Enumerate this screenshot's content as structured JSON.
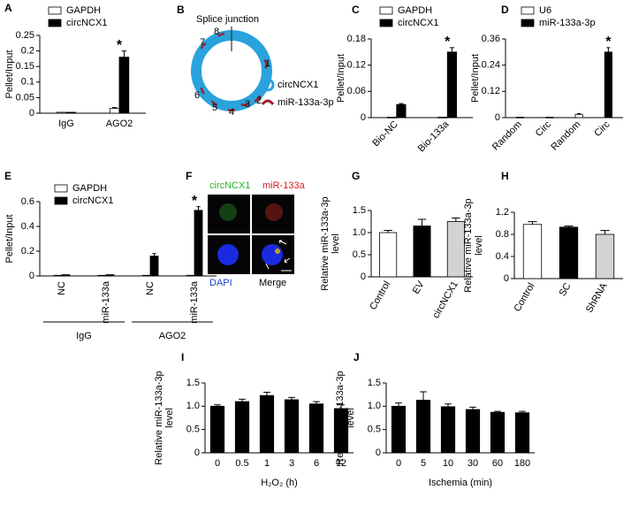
{
  "chart_data": [
    {
      "type": "bar",
      "panel": "A",
      "ylabel": [
        "Pellet/Input"
      ],
      "categories": [
        "IgG",
        "AGO2"
      ],
      "series": [
        {
          "name": "GAPDH",
          "color": "#ffffff",
          "values": [
            0.003,
            0.015
          ],
          "errors": [
            null,
            0.003
          ]
        },
        {
          "name": "circNCX1",
          "color": "#000000",
          "values": [
            0.003,
            0.18
          ],
          "errors": [
            null,
            0.02
          ]
        }
      ],
      "ylim": [
        0,
        0.25
      ],
      "yticks": [
        0,
        0.05,
        0.1,
        0.15,
        0.2,
        0.25
      ],
      "annotations": [
        {
          "text": "*",
          "category": 1
        }
      ]
    },
    {
      "type": "bar",
      "panel": "C",
      "ylabel": [
        "Pellet/Input"
      ],
      "categories": [
        "Bio-NC",
        "Bio-133a"
      ],
      "series": [
        {
          "name": "GAPDH",
          "color": "#ffffff",
          "values": [
            0.001,
            0.001
          ],
          "errors": [
            null,
            null
          ]
        },
        {
          "name": "circNCX1",
          "color": "#000000",
          "values": [
            0.03,
            0.15
          ],
          "errors": [
            0.002,
            0.01
          ]
        }
      ],
      "ylim": [
        0,
        0.18
      ],
      "yticks": [
        0,
        0.06,
        0.12,
        0.18
      ],
      "annotations": [
        {
          "text": "*",
          "category": 1
        }
      ]
    },
    {
      "type": "bar",
      "panel": "D",
      "ylabel": [
        "Pellet/Input"
      ],
      "categories": [
        "Random",
        "Circ",
        "Random",
        "Circ"
      ],
      "series": [
        {
          "name": "U6",
          "color": "#ffffff",
          "values": [
            0.002,
            null,
            0.015,
            null
          ],
          "errors": [
            null,
            null,
            0.003,
            null
          ]
        },
        {
          "name": "miR-133a-3p",
          "color": "#000000",
          "values": [
            null,
            0.002,
            null,
            0.3
          ],
          "errors": [
            null,
            null,
            null,
            0.02
          ]
        }
      ],
      "ylim": [
        0,
        0.36
      ],
      "yticks": [
        0,
        0.12,
        0.24,
        0.36
      ],
      "annotations": [
        {
          "text": "*",
          "category": 3
        }
      ]
    },
    {
      "type": "bar",
      "panel": "E",
      "ylabel": [
        "Pellet/Input"
      ],
      "categories": [
        "NC",
        "miR-133a",
        "NC",
        "miR-133a"
      ],
      "groups": [
        {
          "label": "IgG",
          "span": [
            0,
            1
          ]
        },
        {
          "label": "AGO2",
          "span": [
            2,
            3
          ]
        }
      ],
      "series": [
        {
          "name": "GAPDH",
          "color": "#ffffff",
          "values": [
            0.005,
            0.005,
            0.005,
            0.005
          ],
          "errors": [
            null,
            null,
            null,
            null
          ]
        },
        {
          "name": "circNCX1",
          "color": "#000000",
          "values": [
            0.01,
            0.01,
            0.16,
            0.53
          ],
          "errors": [
            null,
            null,
            0.02,
            0.03
          ]
        }
      ],
      "ylim": [
        0,
        0.6
      ],
      "yticks": [
        0,
        0.2,
        0.4,
        0.6
      ],
      "annotations": [
        {
          "text": "*",
          "category": 3
        }
      ]
    },
    {
      "type": "bar",
      "panel": "G",
      "ylabel": [
        "Relative miR-133a-3p",
        "level"
      ],
      "categories": [
        "Control",
        "EV",
        "circNCX1"
      ],
      "values": [
        1.0,
        1.15,
        1.25
      ],
      "errors": [
        0.05,
        0.15,
        0.08
      ],
      "colors": [
        "#ffffff",
        "#000000",
        "#d3d3d3"
      ],
      "ylim": [
        0,
        1.5
      ],
      "yticks": [
        0,
        0.5,
        {
          "value": 1,
          "label": "1.0"
        },
        1.5
      ]
    },
    {
      "type": "bar",
      "panel": "H",
      "ylabel": [
        "Relative miR-133a-3p",
        "level"
      ],
      "categories": [
        "Control",
        "SC",
        "ShRNA"
      ],
      "values": [
        0.98,
        0.93,
        0.8
      ],
      "errors": [
        0.05,
        0.02,
        0.07
      ],
      "colors": [
        "#ffffff",
        "#000000",
        "#d3d3d3"
      ],
      "ylim": [
        0,
        1.2
      ],
      "yticks": [
        0,
        0.4,
        0.8,
        1.2
      ]
    },
    {
      "type": "bar",
      "panel": "I",
      "ylabel": [
        "Relative miR-133a-3p",
        "level"
      ],
      "xlabel": "H₂O₂ (h)",
      "categories": [
        "0",
        "0.5",
        "1",
        "3",
        "6",
        "12"
      ],
      "values": [
        1.0,
        1.1,
        1.23,
        1.14,
        1.05,
        0.95
      ],
      "errors": [
        0.03,
        0.05,
        0.07,
        0.05,
        0.05,
        0.08
      ],
      "color": "#000000",
      "ylim": [
        0,
        1.5
      ],
      "yticks": [
        0,
        0.5,
        {
          "value": 1,
          "label": "1.0"
        },
        1.5
      ]
    },
    {
      "type": "bar",
      "panel": "J",
      "ylabel": [
        "Relative miR-133a-3p",
        "level"
      ],
      "xlabel": "Ischemia (min)",
      "categories": [
        "0",
        "5",
        "10",
        "30",
        "60",
        "180"
      ],
      "values": [
        1.0,
        1.13,
        0.99,
        0.93,
        0.87,
        0.86
      ],
      "errors": [
        0.07,
        0.18,
        0.06,
        0.05,
        0.02,
        0.03
      ],
      "color": "#000000",
      "ylim": [
        0,
        1.5
      ],
      "yticks": [
        0,
        0.5,
        {
          "value": 1,
          "label": "1.0"
        },
        1.5
      ]
    }
  ],
  "diagram": {
    "panel": "B",
    "title": "Splice junction",
    "sites": [
      "1",
      "2",
      "3",
      "4",
      "5",
      "6",
      "7",
      "8"
    ],
    "legend": [
      "circNCX1",
      "miR-133a-3p"
    ]
  },
  "micrograph": {
    "panel": "F",
    "labels": [
      "circNCX1",
      "miR-133a",
      "DAPI",
      "Merge"
    ]
  }
}
